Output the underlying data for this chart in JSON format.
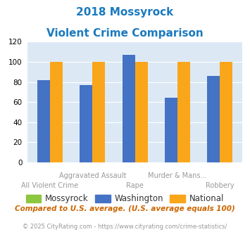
{
  "title_line1": "2018 Mossyrock",
  "title_line2": "Violent Crime Comparison",
  "categories": [
    "All Violent Crime",
    "Aggravated Assault",
    "Rape",
    "Murder & Mans...",
    "Robbery"
  ],
  "mossyrock": [
    0,
    0,
    0,
    0,
    0
  ],
  "washington": [
    82,
    77,
    107,
    64,
    86
  ],
  "national": [
    100,
    100,
    100,
    100,
    100
  ],
  "color_mossyrock": "#8dc63f",
  "color_washington": "#4472c4",
  "color_national": "#faa61a",
  "ylim": [
    0,
    120
  ],
  "yticks": [
    0,
    20,
    40,
    60,
    80,
    100,
    120
  ],
  "bg_color": "#dce9f5",
  "footnote": "Compared to U.S. average. (U.S. average equals 100)",
  "copyright": "© 2025 CityRating.com - https://www.cityrating.com/crime-statistics/",
  "title_color": "#1a7abf",
  "footnote_color": "#cc6600",
  "copyright_color": "#999999",
  "legend_text_color": "#333333",
  "x_label_color": "#999999"
}
